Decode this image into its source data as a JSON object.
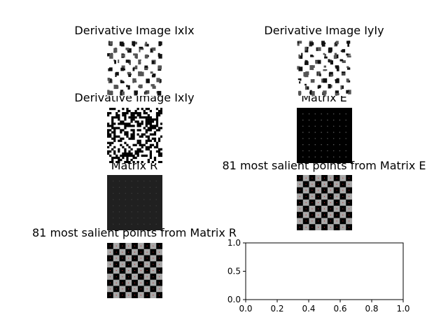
{
  "chart_data": [
    {
      "type": "heatmap",
      "title": "Derivative Image IxIx",
      "pattern": "checker-sparse",
      "colormap": "gray"
    },
    {
      "type": "heatmap",
      "title": "Derivative Image IyIy",
      "pattern": "checker-sparse",
      "colormap": "gray"
    },
    {
      "type": "heatmap",
      "title": "Derivative Image IxIy",
      "pattern": "noise-dense",
      "colormap": "gray"
    },
    {
      "type": "heatmap",
      "title": "Matrix E",
      "pattern": "dark-grid-dots",
      "colormap": "gray",
      "background": "#000000"
    },
    {
      "type": "heatmap",
      "title": "Matrix R",
      "pattern": "dark-grid-dots",
      "colormap": "gray",
      "background": "#202020"
    },
    {
      "type": "heatmap",
      "title": "81 most salient points from Matrix E",
      "pattern": "checkerboard",
      "grid": [
        9,
        9
      ],
      "colors": [
        "#000000",
        "#a8a8a8"
      ],
      "points": 81
    },
    {
      "type": "heatmap",
      "title": "81 most salient points from Matrix R",
      "pattern": "checkerboard",
      "grid": [
        9,
        9
      ],
      "colors": [
        "#000000",
        "#a8a8a8"
      ],
      "points": 81
    },
    {
      "type": "scatter",
      "title": "",
      "xlim": [
        0,
        1
      ],
      "ylim": [
        0,
        1
      ],
      "xticks": [
        "0.0",
        "0.2",
        "0.4",
        "0.6",
        "0.8",
        "1.0"
      ],
      "yticks": [
        "0.0",
        "0.5",
        "1.0"
      ],
      "series": []
    }
  ]
}
